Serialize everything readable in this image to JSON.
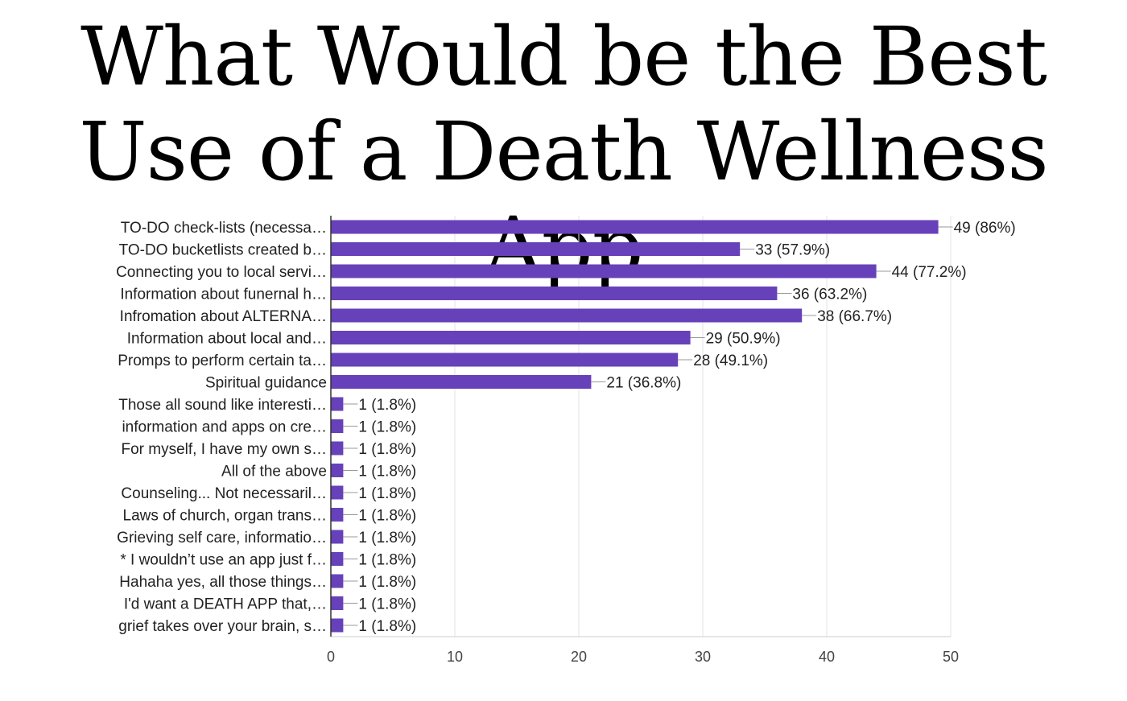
{
  "title": "What Would be the Best Use of a Death Wellness App",
  "chart_data": {
    "type": "bar",
    "orientation": "horizontal",
    "title": "What Would be the Best Use of a Death Wellness App",
    "xlabel": "",
    "ylabel": "",
    "xlim": [
      0,
      50
    ],
    "xticks": [
      0,
      10,
      20,
      30,
      40,
      50
    ],
    "grid": true,
    "legend": "none",
    "bar_color": "#6741b9",
    "categories": [
      "TO-DO check-lists (necessa…",
      "TO-DO bucketlists created b…",
      "Connecting you to local servi…",
      "Information about funernal h…",
      "Infromation about ALTERNA…",
      "Information about local and…",
      "Promps to perform certain ta…",
      "Spiritual guidance",
      "Those all sound like interesti…",
      "information and apps on cre…",
      "For myself, I have my own s…",
      "All of the above",
      "Counseling... Not necessaril…",
      "Laws of church, organ trans…",
      "Grieving self care, informatio…",
      "* I wouldn’t use an app just f…",
      "Hahaha yes, all those things…",
      "I'd want a DEATH APP that,…",
      "grief takes over your brain, s…"
    ],
    "values": [
      49,
      33,
      44,
      36,
      38,
      29,
      28,
      21,
      1,
      1,
      1,
      1,
      1,
      1,
      1,
      1,
      1,
      1,
      1
    ],
    "data_labels": [
      "49 (86%)",
      "33 (57.9%)",
      "44 (77.2%)",
      "36 (63.2%)",
      "38 (66.7%)",
      "29 (50.9%)",
      "28 (49.1%)",
      "21 (36.8%)",
      "1 (1.8%)",
      "1 (1.8%)",
      "1 (1.8%)",
      "1 (1.8%)",
      "1 (1.8%)",
      "1 (1.8%)",
      "1 (1.8%)",
      "1 (1.8%)",
      "1 (1.8%)",
      "1 (1.8%)",
      "1 (1.8%)"
    ]
  }
}
